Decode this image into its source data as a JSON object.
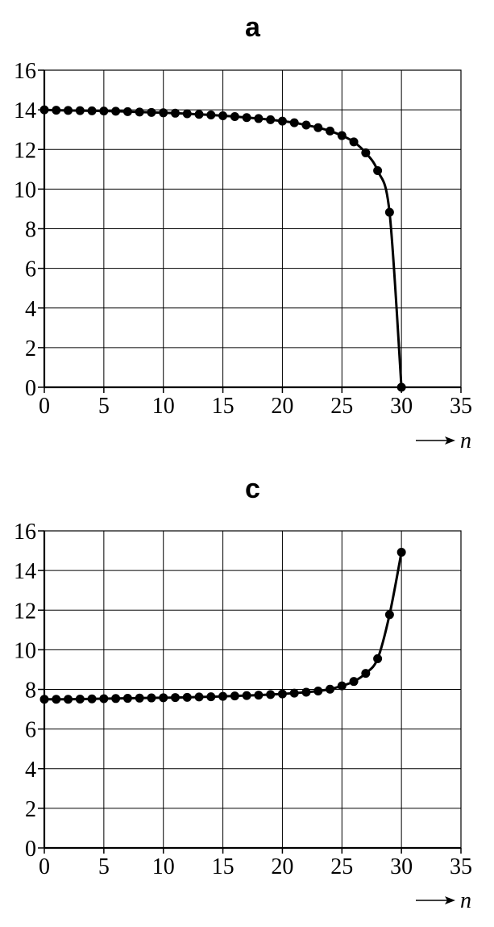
{
  "chart_data": [
    {
      "type": "line",
      "title": "a",
      "xlabel": "n",
      "ylabel": "",
      "xlim": [
        0,
        35
      ],
      "ylim": [
        0,
        16
      ],
      "x_ticks": [
        0,
        5,
        10,
        15,
        20,
        25,
        30,
        35
      ],
      "y_ticks": [
        0,
        2,
        4,
        6,
        8,
        10,
        12,
        14,
        16
      ],
      "grid": true,
      "marker": "filled-circle",
      "series": [
        {
          "x": [
            0,
            1,
            2,
            3,
            4,
            5,
            6,
            7,
            8,
            9,
            10,
            11,
            12,
            13,
            14,
            15,
            16,
            17,
            18,
            19,
            20,
            21,
            22,
            23,
            24,
            25,
            26,
            27,
            28,
            29,
            30
          ],
          "y": [
            14.0,
            13.98,
            13.97,
            13.96,
            13.95,
            13.94,
            13.93,
            13.91,
            13.89,
            13.87,
            13.85,
            13.83,
            13.8,
            13.77,
            13.74,
            13.7,
            13.66,
            13.61,
            13.56,
            13.5,
            13.43,
            13.35,
            13.23,
            13.1,
            12.93,
            12.7,
            12.38,
            11.83,
            10.93,
            8.83,
            0.0
          ]
        }
      ]
    },
    {
      "type": "line",
      "title": "c",
      "xlabel": "n",
      "ylabel": "",
      "xlim": [
        0,
        35
      ],
      "ylim": [
        0,
        16
      ],
      "x_ticks": [
        0,
        5,
        10,
        15,
        20,
        25,
        30,
        35
      ],
      "y_ticks": [
        0,
        2,
        4,
        6,
        8,
        10,
        12,
        14,
        16
      ],
      "grid": true,
      "marker": "filled-circle",
      "series": [
        {
          "x": [
            0,
            1,
            2,
            3,
            4,
            5,
            6,
            7,
            8,
            9,
            10,
            11,
            12,
            13,
            14,
            15,
            16,
            17,
            18,
            19,
            20,
            21,
            22,
            23,
            24,
            25,
            26,
            27,
            28,
            29,
            30
          ],
          "y": [
            7.5,
            7.5,
            7.5,
            7.51,
            7.52,
            7.53,
            7.54,
            7.55,
            7.56,
            7.57,
            7.58,
            7.59,
            7.6,
            7.62,
            7.63,
            7.65,
            7.67,
            7.69,
            7.71,
            7.74,
            7.77,
            7.81,
            7.86,
            7.92,
            8.01,
            8.18,
            8.4,
            8.81,
            9.55,
            11.77,
            14.92
          ]
        }
      ]
    }
  ]
}
